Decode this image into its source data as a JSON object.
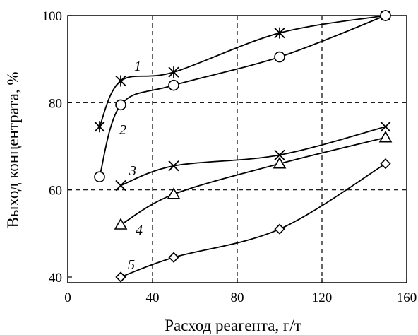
{
  "chart_data": {
    "type": "line",
    "title": "",
    "xlabel": "Расход реагента, г/т",
    "ylabel": "Выход концентрата, %",
    "xlim": [
      0,
      160
    ],
    "ylim": [
      38,
      102
    ],
    "x_ticks": [
      0,
      40,
      80,
      120,
      160
    ],
    "y_ticks": [
      40,
      60,
      80,
      100
    ],
    "x_tick_labels": [
      "0",
      "40",
      "80",
      "120",
      "160"
    ],
    "y_tick_labels": [
      "40",
      "60",
      "80",
      "100"
    ],
    "grid": "dashed, at x = 40, 80, 120 and y = 60, 80",
    "legend": "none",
    "colors": {
      "line": "#000000",
      "marker_fill": "#ffffff",
      "background": "#ffffff"
    },
    "series": [
      {
        "name": "1",
        "marker": "asterisk",
        "x": [
          15,
          25,
          50,
          100,
          150
        ],
        "y": [
          74.5,
          85,
          87,
          96,
          100
        ]
      },
      {
        "name": "2",
        "marker": "circle",
        "x": [
          15,
          25,
          50,
          100,
          150
        ],
        "y": [
          63,
          79.5,
          84,
          90.5,
          100
        ]
      },
      {
        "name": "3",
        "marker": "x",
        "x": [
          25,
          50,
          100,
          150
        ],
        "y": [
          61,
          65.5,
          68,
          74.5
        ]
      },
      {
        "name": "4",
        "marker": "triangle",
        "x": [
          25,
          50,
          100,
          150
        ],
        "y": [
          52,
          59,
          66,
          72
        ]
      },
      {
        "name": "5",
        "marker": "diamond",
        "x": [
          25,
          50,
          100,
          150
        ],
        "y": [
          40,
          44.5,
          51,
          66
        ]
      }
    ]
  }
}
